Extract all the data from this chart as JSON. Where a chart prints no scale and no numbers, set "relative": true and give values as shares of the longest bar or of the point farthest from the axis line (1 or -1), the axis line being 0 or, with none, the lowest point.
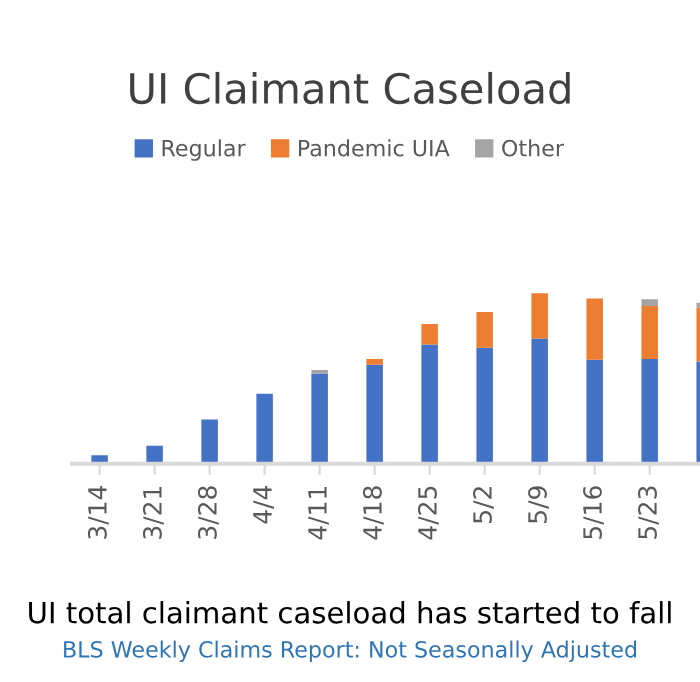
{
  "chart_data": {
    "type": "bar",
    "title": "UI Claimant Caseload",
    "stacked": true,
    "relative": true,
    "legend": "top",
    "categories": [
      "3/14",
      "3/21",
      "3/28",
      "4/4",
      "4/11",
      "4/18",
      "4/25",
      "5/2",
      "5/9",
      "5/16",
      "5/23",
      null
    ],
    "series": [
      {
        "name": "Regular",
        "color": "#4472c4",
        "values": [
          0.05,
          0.105,
          0.26,
          0.41,
          0.53,
          0.58,
          0.7,
          0.68,
          0.735,
          0.61,
          0.615,
          0.6
        ]
      },
      {
        "name": "Pandemic UIA",
        "color": "#ed7d31",
        "values": [
          0,
          0,
          0,
          0,
          0,
          0.035,
          0.12,
          0.21,
          0.265,
          0.36,
          0.31,
          0.315
        ]
      },
      {
        "name": "Other",
        "color": "#a5a5a5",
        "values": [
          0,
          0,
          0,
          0,
          0.02,
          0,
          0,
          0,
          0,
          0,
          0.04,
          0.03
        ]
      }
    ],
    "annotations": [
      "UI total claimant caseload has started to fall",
      "BLS Weekly Claims Report: Not Seasonally Adjusted"
    ]
  }
}
